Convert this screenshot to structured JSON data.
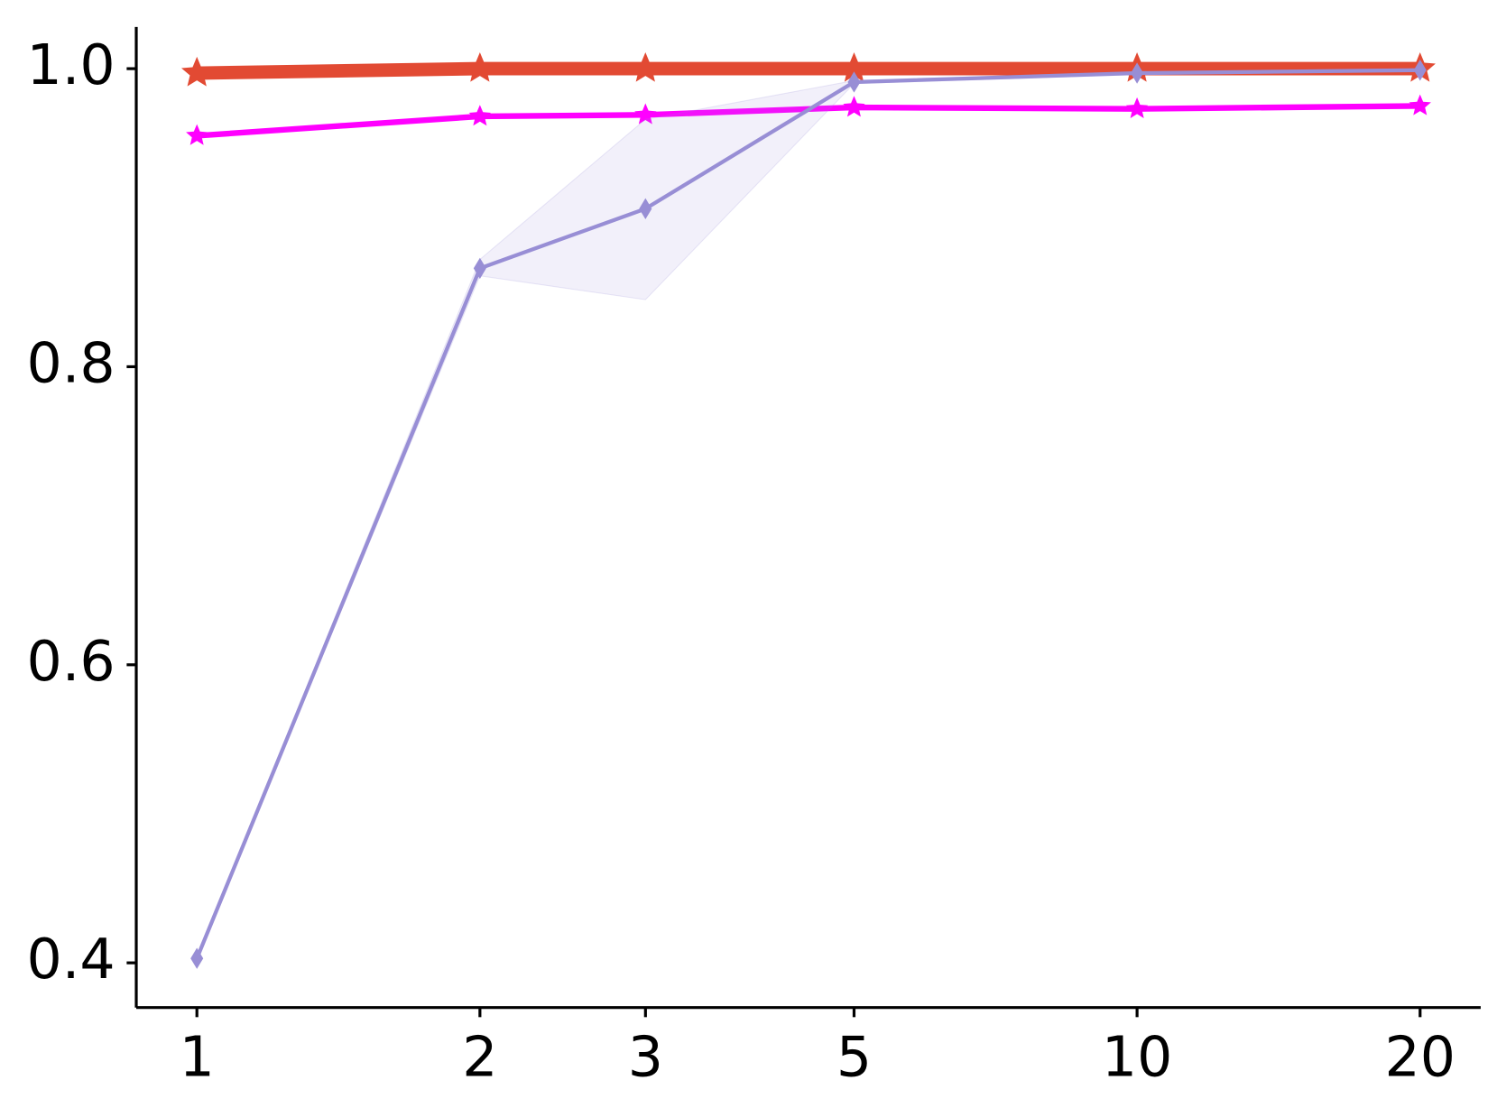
{
  "chart_data": {
    "type": "line",
    "x": [
      1,
      2,
      3,
      5,
      10,
      20
    ],
    "xscale": "log",
    "xlim": [
      0.862,
      23.2
    ],
    "xticks": [
      1,
      2,
      3,
      5,
      10,
      20
    ],
    "ylim": [
      0.37,
      1.028
    ],
    "yticks": [
      0.4,
      0.6,
      0.8,
      {
        "value": 1.0,
        "label": "1.0"
      }
    ],
    "series": [
      {
        "color": "#e24a33",
        "marker": "star",
        "width": 14,
        "values": [
          0.997,
          1.0,
          1.0,
          1.0,
          1.0,
          1.0
        ]
      },
      {
        "color": "#ff00ff",
        "marker": "star",
        "width": 6,
        "values": [
          0.955,
          0.968,
          0.969,
          0.974,
          0.973,
          0.975
        ]
      },
      {
        "color": "#988ed5",
        "marker": "diamond",
        "width": 4,
        "values": [
          0.403,
          0.866,
          0.906,
          0.991,
          0.997,
          0.999
        ],
        "band_lower": [
          0.403,
          0.861,
          0.845,
          0.99,
          0.996,
          0.998
        ],
        "band_upper": [
          0.403,
          0.872,
          0.966,
          0.992,
          0.998,
          1.0
        ]
      }
    ]
  }
}
